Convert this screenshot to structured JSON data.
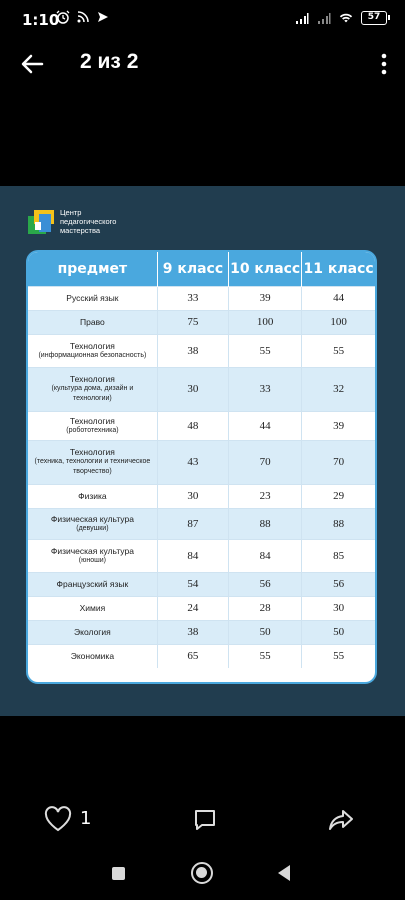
{
  "status_bar": {
    "time": "1:10",
    "battery": "57"
  },
  "app_bar": {
    "title": "2 из 2"
  },
  "image": {
    "logo_text": "Центр педагогического мастерства",
    "table": {
      "headers": [
        "предмет",
        "9 класс",
        "10 класс",
        "11 класс"
      ],
      "rows": [
        {
          "subject": "Русский язык",
          "note": "",
          "g9": "33",
          "g10": "39",
          "g11": "44"
        },
        {
          "subject": "Право",
          "note": "",
          "g9": "75",
          "g10": "100",
          "g11": "100"
        },
        {
          "subject": "Технология",
          "note": "(информационная безопасность)",
          "g9": "38",
          "g10": "55",
          "g11": "55"
        },
        {
          "subject": "Технология",
          "note": "(культура дома, дизайн и технологии)",
          "g9": "30",
          "g10": "33",
          "g11": "32"
        },
        {
          "subject": "Технология",
          "note": "(робототехника)",
          "g9": "48",
          "g10": "44",
          "g11": "39"
        },
        {
          "subject": "Технология",
          "note": "(техника, технологии и техническое творчество)",
          "g9": "43",
          "g10": "70",
          "g11": "70"
        },
        {
          "subject": "Физика",
          "note": "",
          "g9": "30",
          "g10": "23",
          "g11": "29"
        },
        {
          "subject": "Физическая культура",
          "note": "(девушки)",
          "g9": "87",
          "g10": "88",
          "g11": "88"
        },
        {
          "subject": "Физическая культура",
          "note": "(юноши)",
          "g9": "84",
          "g10": "84",
          "g11": "85"
        },
        {
          "subject": "Французский язык",
          "note": "",
          "g9": "54",
          "g10": "56",
          "g11": "56"
        },
        {
          "subject": "Химия",
          "note": "",
          "g9": "24",
          "g10": "28",
          "g11": "30"
        },
        {
          "subject": "Экология",
          "note": "",
          "g9": "38",
          "g10": "50",
          "g11": "50"
        },
        {
          "subject": "Экономика",
          "note": "",
          "g9": "65",
          "g10": "55",
          "g11": "55"
        }
      ]
    }
  },
  "actions": {
    "like_count": "1"
  },
  "colors": {
    "header_blue": "#4aa8de",
    "frame_bg": "#213d4f",
    "row_alt": "#d9ecf8"
  }
}
